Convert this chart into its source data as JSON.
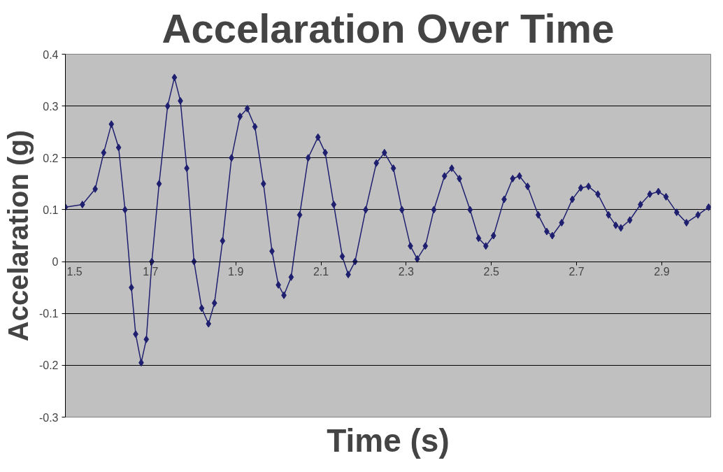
{
  "chart_data": {
    "type": "line",
    "title": "Accelaration Over Time",
    "xlabel": "Time (s)",
    "ylabel": "Accelaration (g)",
    "xlim": [
      1.5,
      3.015
    ],
    "ylim": [
      -0.3,
      0.4
    ],
    "xticks": [
      1.5,
      1.7,
      1.9,
      2.1,
      2.3,
      2.5,
      2.7,
      2.9
    ],
    "yticks": [
      -0.3,
      -0.2,
      -0.1,
      0,
      0.1,
      0.2,
      0.3,
      0.4
    ],
    "grid": "y",
    "marker": "diamond",
    "line_style": "solid",
    "series": [
      {
        "color": "#1f1f70",
        "x": [
          1.5,
          1.54,
          1.57,
          1.59,
          1.608,
          1.625,
          1.64,
          1.655,
          1.665,
          1.678,
          1.69,
          1.703,
          1.72,
          1.74,
          1.756,
          1.77,
          1.785,
          1.802,
          1.82,
          1.836,
          1.85,
          1.869,
          1.89,
          1.91,
          1.927,
          1.945,
          1.965,
          1.985,
          2.0,
          2.013,
          2.03,
          2.05,
          2.07,
          2.093,
          2.11,
          2.13,
          2.15,
          2.164,
          2.18,
          2.205,
          2.23,
          2.249,
          2.27,
          2.29,
          2.31,
          2.326,
          2.345,
          2.365,
          2.39,
          2.407,
          2.425,
          2.45,
          2.47,
          2.487,
          2.505,
          2.53,
          2.55,
          2.566,
          2.585,
          2.61,
          2.63,
          2.643,
          2.665,
          2.69,
          2.71,
          2.728,
          2.75,
          2.775,
          2.792,
          2.804,
          2.825,
          2.85,
          2.872,
          2.892,
          2.91,
          2.935,
          2.958,
          2.985,
          3.01
        ],
        "values": [
          0.105,
          0.11,
          0.14,
          0.21,
          0.265,
          0.22,
          0.1,
          -0.05,
          -0.14,
          -0.195,
          -0.15,
          0.0,
          0.15,
          0.3,
          0.355,
          0.31,
          0.18,
          0.0,
          -0.09,
          -0.12,
          -0.08,
          0.04,
          0.2,
          0.28,
          0.295,
          0.26,
          0.15,
          0.02,
          -0.045,
          -0.065,
          -0.03,
          0.09,
          0.2,
          0.24,
          0.21,
          0.11,
          0.01,
          -0.025,
          0.0,
          0.1,
          0.19,
          0.21,
          0.18,
          0.1,
          0.03,
          0.005,
          0.03,
          0.1,
          0.165,
          0.18,
          0.16,
          0.1,
          0.045,
          0.03,
          0.05,
          0.12,
          0.16,
          0.165,
          0.145,
          0.09,
          0.058,
          0.05,
          0.075,
          0.12,
          0.142,
          0.145,
          0.13,
          0.09,
          0.07,
          0.065,
          0.08,
          0.11,
          0.13,
          0.135,
          0.125,
          0.095,
          0.075,
          0.09,
          0.105
        ]
      }
    ]
  }
}
